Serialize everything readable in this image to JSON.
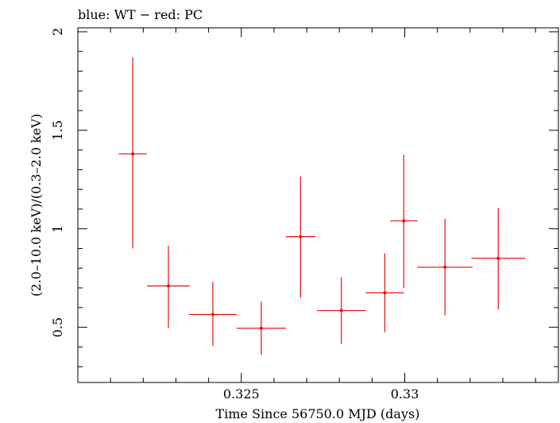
{
  "chart_data": {
    "type": "scatter",
    "title": "blue: WT − red: PC",
    "xlabel": "Time Since 56750.0 MJD (days)",
    "ylabel": "(2.0–10.0 keV)/(0.3–2.0 keV)",
    "xlim": [
      0.32,
      0.3347
    ],
    "ylim": [
      0.22,
      2.02
    ],
    "x_major_ticks": [
      0.325,
      0.33
    ],
    "x_tick_labels": [
      "0.325",
      "0.33"
    ],
    "x_minor_step": 0.001,
    "y_major_ticks": [
      0.5,
      1,
      1.5,
      2
    ],
    "y_tick_labels": [
      "0.5",
      "1",
      "1.5",
      "2"
    ],
    "y_minor_step": 0.1,
    "grid": false,
    "series": [
      {
        "color": "#e8100c",
        "points": [
          {
            "x": 0.32168,
            "xerr": 0.00043,
            "y": 1.38,
            "ylo": 0.9,
            "yhi": 1.87
          },
          {
            "x": 0.32277,
            "xerr": 0.00065,
            "y": 0.71,
            "ylo": 0.495,
            "yhi": 0.915
          },
          {
            "x": 0.32413,
            "xerr": 0.00073,
            "y": 0.565,
            "ylo": 0.405,
            "yhi": 0.73
          },
          {
            "x": 0.32561,
            "xerr": 0.00075,
            "y": 0.495,
            "ylo": 0.36,
            "yhi": 0.63
          },
          {
            "x": 0.32681,
            "xerr": 0.00045,
            "y": 0.96,
            "ylo": 0.65,
            "yhi": 1.265
          },
          {
            "x": 0.32806,
            "xerr": 0.00075,
            "y": 0.585,
            "ylo": 0.415,
            "yhi": 0.755
          },
          {
            "x": 0.32939,
            "xerr": 0.00058,
            "y": 0.675,
            "ylo": 0.475,
            "yhi": 0.875
          },
          {
            "x": 0.32997,
            "xerr": 0.00042,
            "y": 1.04,
            "ylo": 0.7,
            "yhi": 1.375
          },
          {
            "x": 0.33123,
            "xerr": 0.00085,
            "y": 0.805,
            "ylo": 0.56,
            "yhi": 1.05
          },
          {
            "x": 0.33286,
            "xerr": 0.00082,
            "y": 0.85,
            "ylo": 0.59,
            "yhi": 1.105
          }
        ]
      }
    ]
  }
}
